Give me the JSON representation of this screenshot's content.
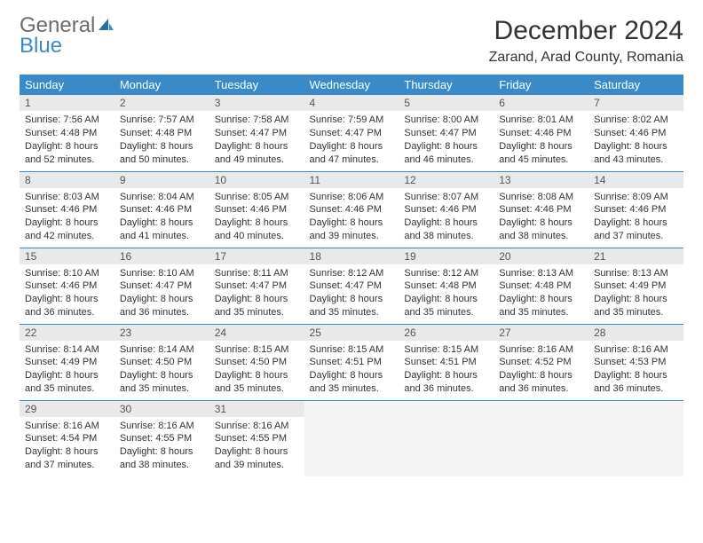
{
  "brand": {
    "general": "General",
    "blue": "Blue"
  },
  "title": "December 2024",
  "location": "Zarand, Arad County, Romania",
  "colors": {
    "header_bg": "#3a8ac9",
    "header_text": "#ffffff",
    "daynum_bg": "#e9e9e9",
    "border": "#3a8ac9",
    "logo_gray": "#6b6b6b",
    "logo_blue": "#3a8ac9"
  },
  "weekdays": [
    "Sunday",
    "Monday",
    "Tuesday",
    "Wednesday",
    "Thursday",
    "Friday",
    "Saturday"
  ],
  "days": {
    "1": {
      "sunrise": "7:56 AM",
      "sunset": "4:48 PM",
      "daylight": "8 hours and 52 minutes."
    },
    "2": {
      "sunrise": "7:57 AM",
      "sunset": "4:48 PM",
      "daylight": "8 hours and 50 minutes."
    },
    "3": {
      "sunrise": "7:58 AM",
      "sunset": "4:47 PM",
      "daylight": "8 hours and 49 minutes."
    },
    "4": {
      "sunrise": "7:59 AM",
      "sunset": "4:47 PM",
      "daylight": "8 hours and 47 minutes."
    },
    "5": {
      "sunrise": "8:00 AM",
      "sunset": "4:47 PM",
      "daylight": "8 hours and 46 minutes."
    },
    "6": {
      "sunrise": "8:01 AM",
      "sunset": "4:46 PM",
      "daylight": "8 hours and 45 minutes."
    },
    "7": {
      "sunrise": "8:02 AM",
      "sunset": "4:46 PM",
      "daylight": "8 hours and 43 minutes."
    },
    "8": {
      "sunrise": "8:03 AM",
      "sunset": "4:46 PM",
      "daylight": "8 hours and 42 minutes."
    },
    "9": {
      "sunrise": "8:04 AM",
      "sunset": "4:46 PM",
      "daylight": "8 hours and 41 minutes."
    },
    "10": {
      "sunrise": "8:05 AM",
      "sunset": "4:46 PM",
      "daylight": "8 hours and 40 minutes."
    },
    "11": {
      "sunrise": "8:06 AM",
      "sunset": "4:46 PM",
      "daylight": "8 hours and 39 minutes."
    },
    "12": {
      "sunrise": "8:07 AM",
      "sunset": "4:46 PM",
      "daylight": "8 hours and 38 minutes."
    },
    "13": {
      "sunrise": "8:08 AM",
      "sunset": "4:46 PM",
      "daylight": "8 hours and 38 minutes."
    },
    "14": {
      "sunrise": "8:09 AM",
      "sunset": "4:46 PM",
      "daylight": "8 hours and 37 minutes."
    },
    "15": {
      "sunrise": "8:10 AM",
      "sunset": "4:46 PM",
      "daylight": "8 hours and 36 minutes."
    },
    "16": {
      "sunrise": "8:10 AM",
      "sunset": "4:47 PM",
      "daylight": "8 hours and 36 minutes."
    },
    "17": {
      "sunrise": "8:11 AM",
      "sunset": "4:47 PM",
      "daylight": "8 hours and 35 minutes."
    },
    "18": {
      "sunrise": "8:12 AM",
      "sunset": "4:47 PM",
      "daylight": "8 hours and 35 minutes."
    },
    "19": {
      "sunrise": "8:12 AM",
      "sunset": "4:48 PM",
      "daylight": "8 hours and 35 minutes."
    },
    "20": {
      "sunrise": "8:13 AM",
      "sunset": "4:48 PM",
      "daylight": "8 hours and 35 minutes."
    },
    "21": {
      "sunrise": "8:13 AM",
      "sunset": "4:49 PM",
      "daylight": "8 hours and 35 minutes."
    },
    "22": {
      "sunrise": "8:14 AM",
      "sunset": "4:49 PM",
      "daylight": "8 hours and 35 minutes."
    },
    "23": {
      "sunrise": "8:14 AM",
      "sunset": "4:50 PM",
      "daylight": "8 hours and 35 minutes."
    },
    "24": {
      "sunrise": "8:15 AM",
      "sunset": "4:50 PM",
      "daylight": "8 hours and 35 minutes."
    },
    "25": {
      "sunrise": "8:15 AM",
      "sunset": "4:51 PM",
      "daylight": "8 hours and 35 minutes."
    },
    "26": {
      "sunrise": "8:15 AM",
      "sunset": "4:51 PM",
      "daylight": "8 hours and 36 minutes."
    },
    "27": {
      "sunrise": "8:16 AM",
      "sunset": "4:52 PM",
      "daylight": "8 hours and 36 minutes."
    },
    "28": {
      "sunrise": "8:16 AM",
      "sunset": "4:53 PM",
      "daylight": "8 hours and 36 minutes."
    },
    "29": {
      "sunrise": "8:16 AM",
      "sunset": "4:54 PM",
      "daylight": "8 hours and 37 minutes."
    },
    "30": {
      "sunrise": "8:16 AM",
      "sunset": "4:55 PM",
      "daylight": "8 hours and 38 minutes."
    },
    "31": {
      "sunrise": "8:16 AM",
      "sunset": "4:55 PM",
      "daylight": "8 hours and 39 minutes."
    }
  },
  "labels": {
    "sunrise": "Sunrise:",
    "sunset": "Sunset:",
    "daylight": "Daylight:"
  },
  "layout": {
    "weeks": [
      [
        1,
        2,
        3,
        4,
        5,
        6,
        7
      ],
      [
        8,
        9,
        10,
        11,
        12,
        13,
        14
      ],
      [
        15,
        16,
        17,
        18,
        19,
        20,
        21
      ],
      [
        22,
        23,
        24,
        25,
        26,
        27,
        28
      ],
      [
        29,
        30,
        31,
        null,
        null,
        null,
        null
      ]
    ]
  }
}
